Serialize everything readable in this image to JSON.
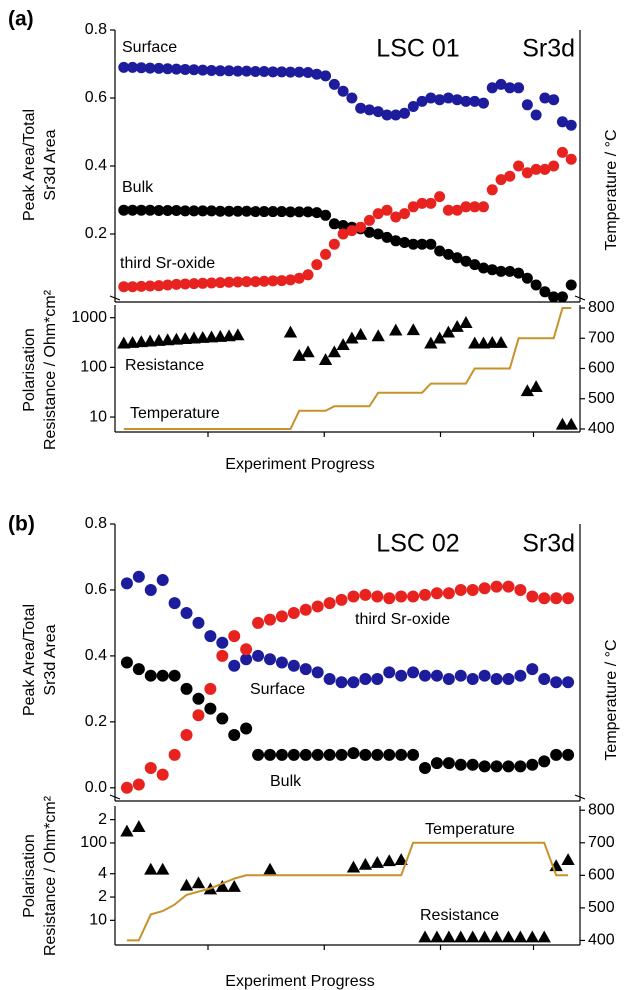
{
  "chart_data": [
    {
      "type": "scatter",
      "panel_label": "(a)",
      "title": "LSC 01",
      "annotation": "Sr3d",
      "ylabel": [
        "Peak Area/Total",
        "Sr3d Area"
      ],
      "x": [
        1,
        2,
        3,
        4,
        5,
        6,
        7,
        8,
        9,
        10,
        11,
        12,
        13,
        14,
        15,
        16,
        17,
        18,
        19,
        20,
        21,
        22,
        23,
        24,
        25,
        26,
        27,
        28,
        29,
        30,
        31,
        32,
        33,
        34,
        35,
        36,
        37,
        38,
        39,
        40,
        41,
        42,
        43,
        44,
        45,
        46,
        47,
        48,
        49,
        50,
        51,
        52
      ],
      "xlim": [
        0,
        53
      ],
      "ylim": [
        0,
        0.8
      ],
      "yticks": [
        0.2,
        0.4,
        0.6,
        0.8
      ],
      "series": [
        {
          "name": "Surface",
          "color": "#1c1c9c",
          "marker": "circle",
          "values": [
            0.69,
            0.69,
            0.689,
            0.688,
            0.687,
            0.686,
            0.685,
            0.684,
            0.683,
            0.682,
            0.681,
            0.68,
            0.68,
            0.679,
            0.679,
            0.678,
            0.678,
            0.677,
            0.677,
            0.676,
            0.676,
            0.675,
            0.67,
            0.665,
            0.64,
            0.62,
            0.6,
            0.57,
            0.565,
            0.56,
            0.55,
            0.55,
            0.555,
            0.575,
            0.59,
            0.6,
            0.595,
            0.6,
            0.595,
            0.59,
            0.59,
            0.585,
            0.63,
            0.64,
            0.63,
            0.63,
            0.58,
            0.55,
            0.6,
            0.595,
            0.53,
            0.52
          ]
        },
        {
          "name": "Bulk",
          "color": "#000000",
          "marker": "circle",
          "values": [
            0.27,
            0.27,
            0.27,
            0.27,
            0.269,
            0.269,
            0.269,
            0.268,
            0.268,
            0.268,
            0.268,
            0.267,
            0.267,
            0.267,
            0.267,
            0.266,
            0.266,
            0.266,
            0.266,
            0.265,
            0.265,
            0.265,
            0.263,
            0.255,
            0.23,
            0.225,
            0.22,
            0.215,
            0.205,
            0.2,
            0.19,
            0.18,
            0.175,
            0.17,
            0.17,
            0.17,
            0.15,
            0.14,
            0.13,
            0.12,
            0.11,
            0.1,
            0.095,
            0.09,
            0.09,
            0.085,
            0.07,
            0.05,
            0.03,
            0.015,
            0.015,
            0.05
          ]
        },
        {
          "name": "third Sr-oxide",
          "color": "#e8231f",
          "marker": "circle",
          "values": [
            0.045,
            0.045,
            0.046,
            0.047,
            0.048,
            0.05,
            0.052,
            0.053,
            0.054,
            0.055,
            0.056,
            0.057,
            0.058,
            0.059,
            0.06,
            0.06,
            0.061,
            0.062,
            0.063,
            0.065,
            0.07,
            0.08,
            0.11,
            0.14,
            0.17,
            0.2,
            0.21,
            0.22,
            0.24,
            0.26,
            0.27,
            0.25,
            0.26,
            0.28,
            0.29,
            0.29,
            0.31,
            0.27,
            0.27,
            0.28,
            0.28,
            0.28,
            0.33,
            0.36,
            0.37,
            0.4,
            0.38,
            0.39,
            0.39,
            0.4,
            0.44,
            0.42
          ]
        }
      ]
    },
    {
      "type": "scatter",
      "xlabel": "Experiment Progress",
      "ylabel": [
        "Polarisation",
        "Resistance / Ohm*cm²"
      ],
      "y2label": "Temperature / °C",
      "x": [
        1,
        2,
        3,
        4,
        5,
        6,
        7,
        8,
        9,
        10,
        11,
        12,
        13,
        14,
        15,
        16,
        17,
        18,
        19,
        20,
        21,
        22,
        23,
        24,
        25,
        26,
        27,
        28,
        29,
        30,
        31,
        32,
        33,
        34,
        35,
        36,
        37,
        38,
        39,
        40,
        41,
        42,
        43,
        44,
        45,
        46,
        47,
        48,
        49,
        50,
        51,
        52
      ],
      "xlim": [
        0,
        53
      ],
      "ylim": [
        5,
        1800
      ],
      "ylog": true,
      "yticks": [
        10,
        100,
        1000
      ],
      "y2lim": [
        390,
        810
      ],
      "y2ticks": [
        400,
        500,
        600,
        700,
        800
      ],
      "series": [
        {
          "name": "Resistance",
          "color": "#000000",
          "marker": "triangle",
          "values": [
            300,
            310,
            320,
            330,
            340,
            350,
            360,
            370,
            380,
            390,
            400,
            410,
            420,
            440,
            null,
            null,
            null,
            null,
            null,
            500,
            170,
            200,
            null,
            140,
            200,
            280,
            380,
            450,
            null,
            420,
            null,
            550,
            null,
            560,
            null,
            300,
            380,
            500,
            650,
            780,
            300,
            300,
            310,
            310,
            null,
            null,
            33,
            40,
            null,
            null,
            7,
            7
          ]
        },
        {
          "name": "Temperature",
          "color": "#c8922a",
          "marker": "line",
          "axis": "y2",
          "values": [
            400,
            400,
            400,
            400,
            400,
            400,
            400,
            400,
            400,
            400,
            400,
            400,
            400,
            400,
            400,
            400,
            400,
            400,
            400,
            400,
            460,
            460,
            460,
            460,
            475,
            475,
            475,
            475,
            475,
            520,
            520,
            520,
            520,
            520,
            520,
            550,
            550,
            550,
            550,
            550,
            600,
            600,
            600,
            600,
            600,
            700,
            700,
            700,
            700,
            700,
            800,
            800
          ]
        }
      ]
    },
    {
      "type": "scatter",
      "panel_label": "(b)",
      "title": "LSC 02",
      "annotation": "Sr3d",
      "ylabel": [
        "Peak Area/Total",
        "Sr3d Area"
      ],
      "x": [
        1,
        2,
        3,
        4,
        5,
        6,
        7,
        8,
        9,
        10,
        11,
        12,
        13,
        14,
        15,
        16,
        17,
        18,
        19,
        20,
        21,
        22,
        23,
        24,
        25,
        26,
        27,
        28,
        29,
        30,
        31,
        32,
        33,
        34,
        35,
        36,
        37,
        38
      ],
      "xlim": [
        0,
        39
      ],
      "ylim": [
        -0.04,
        0.8
      ],
      "yticks": [
        {
          "value": 0,
          "label": "0.0"
        },
        0.2,
        0.4,
        0.6,
        0.8
      ],
      "series": [
        {
          "name": "Surface",
          "color": "#1c1c9c",
          "marker": "circle",
          "values": [
            0.62,
            0.64,
            0.6,
            0.63,
            0.56,
            0.53,
            0.5,
            0.46,
            0.44,
            0.37,
            0.39,
            0.4,
            0.39,
            0.38,
            0.37,
            0.36,
            0.35,
            0.33,
            0.32,
            0.32,
            0.33,
            0.33,
            0.35,
            0.34,
            0.35,
            0.34,
            0.34,
            0.33,
            0.34,
            0.33,
            0.34,
            0.33,
            0.33,
            0.34,
            0.36,
            0.33,
            0.32,
            0.32
          ]
        },
        {
          "name": "Bulk",
          "color": "#000000",
          "marker": "circle",
          "values": [
            0.38,
            0.36,
            0.34,
            0.34,
            0.34,
            0.3,
            0.27,
            0.24,
            0.21,
            0.16,
            0.18,
            0.1,
            0.1,
            0.1,
            0.1,
            0.1,
            0.1,
            0.1,
            0.1,
            0.105,
            0.1,
            0.1,
            0.1,
            0.1,
            0.1,
            0.06,
            0.075,
            0.075,
            0.07,
            0.07,
            0.065,
            0.065,
            0.065,
            0.065,
            0.07,
            0.08,
            0.1,
            0.1
          ]
        },
        {
          "name": "third Sr-oxide",
          "color": "#e8231f",
          "marker": "circle",
          "values": [
            0.0,
            0.01,
            0.06,
            0.04,
            0.1,
            0.16,
            0.22,
            0.3,
            0.4,
            0.46,
            0.42,
            0.5,
            0.51,
            0.52,
            0.53,
            0.54,
            0.55,
            0.56,
            0.57,
            0.58,
            0.585,
            0.58,
            0.575,
            0.58,
            0.58,
            0.585,
            0.59,
            0.59,
            0.6,
            0.6,
            0.605,
            0.61,
            0.61,
            0.6,
            0.58,
            0.575,
            0.575,
            0.575
          ]
        }
      ]
    },
    {
      "type": "scatter",
      "xlabel": "Experiment Progress",
      "ylabel": [
        "Polarisation",
        "Resistance / Ohm*cm²"
      ],
      "y2label": "Temperature / °C",
      "x": [
        1,
        2,
        3,
        4,
        5,
        6,
        7,
        8,
        9,
        10,
        11,
        12,
        13,
        14,
        15,
        16,
        17,
        18,
        19,
        20,
        21,
        22,
        23,
        24,
        25,
        26,
        27,
        28,
        29,
        30,
        31,
        32,
        33,
        34,
        35,
        36,
        37,
        38
      ],
      "xlim": [
        0,
        39
      ],
      "ylim": [
        4.8,
        300
      ],
      "ylog": true,
      "yticks": [
        {
          "value": 200,
          "label": "2"
        },
        100,
        {
          "value": 40,
          "label": "4"
        },
        {
          "value": 20,
          "label": "2"
        },
        10
      ],
      "y2lim": [
        386,
        813
      ],
      "y2ticks": [
        400,
        500,
        600,
        700,
        800
      ],
      "series": [
        {
          "name": "Resistance",
          "color": "#000000",
          "marker": "triangle",
          "values": [
            140,
            160,
            45,
            45,
            null,
            28,
            30,
            25,
            27,
            27,
            null,
            null,
            45,
            null,
            null,
            null,
            null,
            null,
            null,
            48,
            52,
            55,
            58,
            60,
            null,
            6,
            6,
            6,
            6,
            6,
            6,
            6,
            6,
            6,
            6,
            6,
            50,
            60
          ]
        },
        {
          "name": "Temperature",
          "color": "#c8922a",
          "marker": "line",
          "axis": "y2",
          "values": [
            400,
            400,
            480,
            490,
            510,
            540,
            550,
            560,
            575,
            590,
            600,
            600,
            600,
            600,
            600,
            600,
            600,
            600,
            600,
            600,
            600,
            600,
            600,
            600,
            700,
            700,
            700,
            700,
            700,
            700,
            700,
            700,
            700,
            700,
            700,
            700,
            600,
            600
          ]
        }
      ]
    }
  ]
}
